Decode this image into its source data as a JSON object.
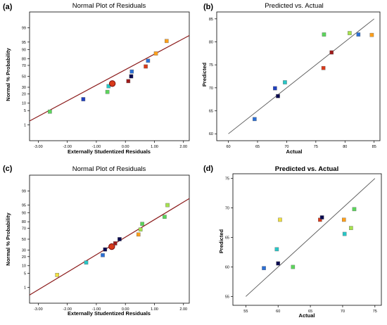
{
  "colors": {
    "fit_line_red": "#8b1a1a",
    "fit_line_gray": "#555555",
    "axis": "#000000",
    "marker_palette": [
      "#1f3fbf",
      "#2a6fd6",
      "#27c7c7",
      "#5bd65b",
      "#a6e34d",
      "#f0e040",
      "#ff9f1a",
      "#d93a1a",
      "#9e1a1a",
      "#0a0a50"
    ]
  },
  "panels": [
    {
      "tag": "(a)"
    },
    {
      "tag": "(b)"
    },
    {
      "tag": "(c)"
    },
    {
      "tag": "(d)"
    }
  ],
  "chart_data": [
    {
      "type": "scatter",
      "title": "Normal Plot of Residuals",
      "xlabel": "Externally Studentized Residuals",
      "ylabel": "Normal % Probability",
      "x_ticks": [
        "-3.00",
        "-2.00",
        "-1.00",
        "0.00",
        "1.00",
        "2.00"
      ],
      "y_ticks": [
        "1",
        "5",
        "10",
        "20",
        "30",
        "50",
        "70",
        "80",
        "90",
        "95",
        "99"
      ],
      "xlim": [
        -3.3,
        2.2
      ],
      "y_scale": "normal-probability",
      "ylim_percent": [
        0.1,
        99.9
      ],
      "fit_line": {
        "x": [
          -3.3,
          2.2
        ],
        "y": [
          1.6,
          97.5
        ]
      },
      "points": [
        {
          "x": -2.6,
          "y": 4.5,
          "color": "#5bd65b"
        },
        {
          "x": -1.45,
          "y": 13.6,
          "color": "#1f3fbf"
        },
        {
          "x": -0.62,
          "y": 22.7,
          "color": "#5bd65b"
        },
        {
          "x": -0.58,
          "y": 31.8,
          "color": "#27c7c7"
        },
        {
          "x": -0.45,
          "y": 36.4,
          "color": "#d93a1a",
          "highlight": true
        },
        {
          "x": 0.1,
          "y": 40.9,
          "color": "#9e1a1a"
        },
        {
          "x": 0.2,
          "y": 50.0,
          "color": "#0a0a50"
        },
        {
          "x": 0.22,
          "y": 59.1,
          "color": "#2a6fd6"
        },
        {
          "x": 0.7,
          "y": 68.2,
          "color": "#d93a1a"
        },
        {
          "x": 0.78,
          "y": 77.3,
          "color": "#2a6fd6"
        },
        {
          "x": 1.05,
          "y": 86.4,
          "color": "#ff9f1a"
        },
        {
          "x": 1.42,
          "y": 95.5,
          "color": "#ff9f1a"
        }
      ]
    },
    {
      "type": "scatter",
      "title": "Predicted vs. Actual",
      "xlabel": "Actual",
      "ylabel": "Predicted",
      "x_ticks": [
        "60",
        "65",
        "70",
        "75",
        "80",
        "85"
      ],
      "y_ticks": [
        "60",
        "65",
        "70",
        "75",
        "80",
        "85"
      ],
      "xlim": [
        58,
        86
      ],
      "ylim": [
        58.5,
        86.5
      ],
      "fit_line": {
        "x": [
          60,
          85
        ],
        "y": [
          60,
          85
        ]
      },
      "points": [
        {
          "x": 64.5,
          "y": 63.2,
          "color": "#2a6fd6"
        },
        {
          "x": 68.0,
          "y": 69.9,
          "color": "#1f3fbf"
        },
        {
          "x": 68.5,
          "y": 68.2,
          "color": "#0a0a50"
        },
        {
          "x": 69.7,
          "y": 71.2,
          "color": "#27c7c7"
        },
        {
          "x": 76.3,
          "y": 74.3,
          "color": "#d93a1a"
        },
        {
          "x": 77.7,
          "y": 77.7,
          "color": "#9e1a1a"
        },
        {
          "x": 76.4,
          "y": 81.6,
          "color": "#5bd65b"
        },
        {
          "x": 80.8,
          "y": 81.9,
          "color": "#a6e34d"
        },
        {
          "x": 82.3,
          "y": 81.6,
          "color": "#2a6fd6"
        },
        {
          "x": 84.6,
          "y": 81.5,
          "color": "#ff9f1a"
        }
      ]
    },
    {
      "type": "scatter",
      "title": "Normal Plot of Residuals",
      "xlabel": "Externally Studentized Residuals",
      "ylabel": "Normal % Probability",
      "x_ticks": [
        "-3.00",
        "-2.00",
        "-1.00",
        "0.00",
        "1.00",
        "2.00"
      ],
      "y_ticks": [
        "1",
        "5",
        "10",
        "20",
        "30",
        "50",
        "70",
        "80",
        "90",
        "95",
        "99"
      ],
      "xlim": [
        -3.3,
        2.2
      ],
      "y_scale": "normal-probability",
      "ylim_percent": [
        0.1,
        99.9
      ],
      "fit_line": {
        "x": [
          -3.3,
          2.2
        ],
        "y": [
          0.35,
          97.5
        ]
      },
      "points": [
        {
          "x": -2.35,
          "y": 4.2,
          "color": "#f0e040"
        },
        {
          "x": -1.35,
          "y": 13.0,
          "color": "#27c7c7"
        },
        {
          "x": -0.78,
          "y": 22.0,
          "color": "#2a6fd6"
        },
        {
          "x": -0.7,
          "y": 31.0,
          "color": "#0a0a50"
        },
        {
          "x": -0.47,
          "y": 36.0,
          "color": "#d93a1a",
          "highlight": true
        },
        {
          "x": -0.35,
          "y": 42.0,
          "color": "#9e1a1a"
        },
        {
          "x": -0.2,
          "y": 50.0,
          "color": "#0a0a50"
        },
        {
          "x": 0.45,
          "y": 59.0,
          "color": "#ff9f1a"
        },
        {
          "x": 0.52,
          "y": 68.0,
          "color": "#a6e34d"
        },
        {
          "x": 0.58,
          "y": 77.0,
          "color": "#5bd65b"
        },
        {
          "x": 1.35,
          "y": 86.0,
          "color": "#5bd65b"
        },
        {
          "x": 1.45,
          "y": 95.0,
          "color": "#a6e34d"
        }
      ]
    },
    {
      "type": "scatter",
      "title": "Predicted vs. Actual",
      "xlabel": "Actual",
      "ylabel": "Predicted",
      "x_ticks": [
        "55",
        "60",
        "65",
        "70",
        "75"
      ],
      "y_ticks": [
        "55",
        "60",
        "65",
        "70",
        "75"
      ],
      "xlim": [
        53,
        76
      ],
      "ylim": [
        53.5,
        75.8
      ],
      "fit_line": {
        "x": [
          55,
          75
        ],
        "y": [
          55,
          75
        ]
      },
      "points": [
        {
          "x": 57.8,
          "y": 59.8,
          "color": "#2a6fd6"
        },
        {
          "x": 59.8,
          "y": 63.0,
          "color": "#27c7c7"
        },
        {
          "x": 60.0,
          "y": 60.6,
          "color": "#0a0a50"
        },
        {
          "x": 60.3,
          "y": 68.0,
          "color": "#f0e040"
        },
        {
          "x": 62.3,
          "y": 60.0,
          "color": "#5bd65b"
        },
        {
          "x": 66.5,
          "y": 68.0,
          "color": "#d93a1a"
        },
        {
          "x": 66.8,
          "y": 68.4,
          "color": "#0a0a50"
        },
        {
          "x": 70.2,
          "y": 68.0,
          "color": "#ff9f1a"
        },
        {
          "x": 70.3,
          "y": 65.6,
          "color": "#27c7c7"
        },
        {
          "x": 71.3,
          "y": 66.6,
          "color": "#a6e34d"
        },
        {
          "x": 71.8,
          "y": 69.8,
          "color": "#5bd65b"
        }
      ]
    }
  ]
}
